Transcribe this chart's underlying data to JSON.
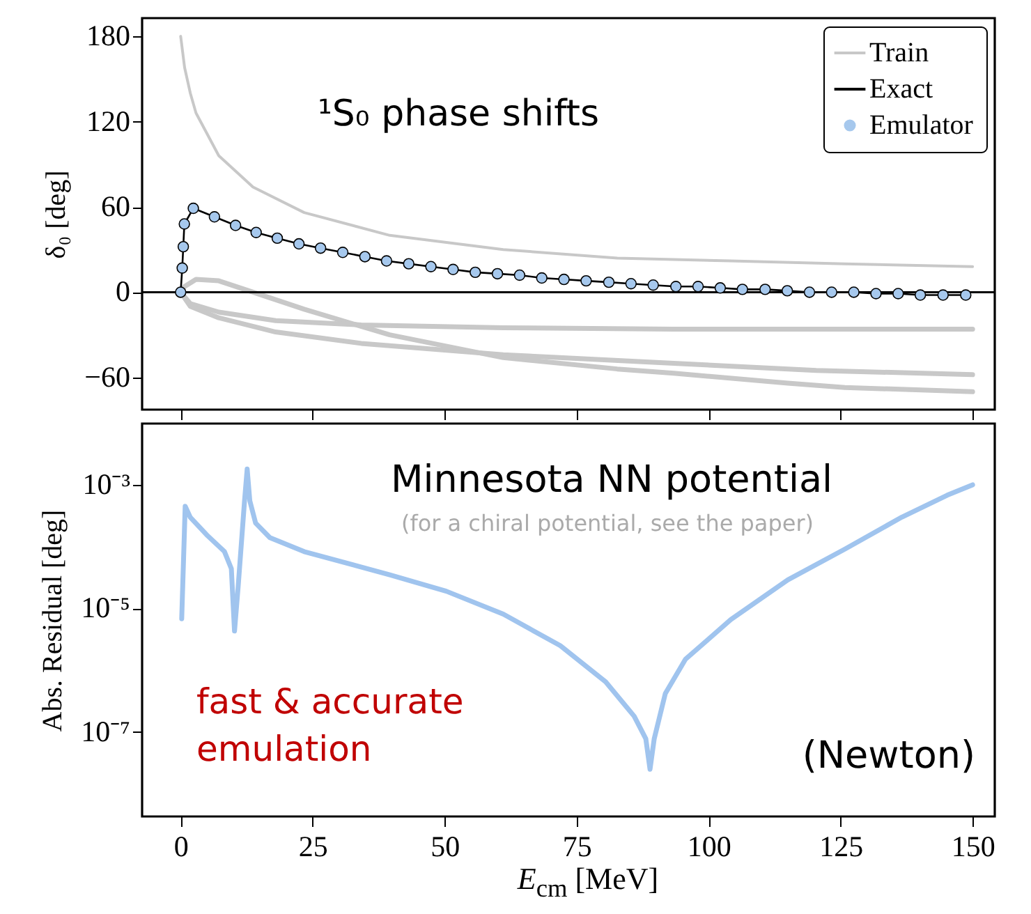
{
  "chart_data": [
    {
      "type": "line",
      "ylabel": "δ₀ [deg]",
      "xlim": [
        -7.3,
        154.2
      ],
      "ylim": [
        -82.6,
        192.8
      ],
      "xticks": [
        0,
        25,
        50,
        75,
        100,
        125,
        150
      ],
      "yticks": [
        {
          "value": -60,
          "label": "−60"
        },
        0,
        60,
        120,
        180
      ],
      "tick_labels": "y",
      "grid": false,
      "legend": "top right",
      "annotations": [
        "¹S₀ phase shifts"
      ],
      "ref_lines": [
        {
          "axis": "y",
          "value": 0,
          "color": "#000000"
        }
      ],
      "series": [
        {
          "name": "Train",
          "color": "#c8c8c8",
          "x": [
            0,
            0.75,
            1.83,
            2.91,
            7.22,
            13.7,
            23.4,
            39.6,
            61.1,
            82.7,
            104.2,
            125.8,
            150
          ],
          "values": [
            180,
            158,
            140,
            126,
            96,
            74,
            56,
            40,
            30,
            24,
            22,
            20,
            18
          ]
        },
        {
          "color": "#c8c8c8",
          "x": [
            0,
            0.75,
            2.91,
            7.22,
            13.7,
            23.4,
            39.6,
            61.1,
            82.7,
            93.4,
            115.0,
            125.8,
            150
          ],
          "values": [
            0,
            4,
            9,
            8,
            0,
            -12,
            -30,
            -46,
            -54,
            -57,
            -64,
            -67,
            -70
          ]
        },
        {
          "color": "#c8c8c8",
          "x": [
            0,
            1.83,
            7.22,
            18.0,
            34.2,
            61.1,
            93.4,
            150
          ],
          "values": [
            0,
            -8,
            -14,
            -20,
            -23,
            -25,
            -26,
            -26
          ]
        },
        {
          "color": "#c8c8c8",
          "x": [
            0,
            1.83,
            7.22,
            18.0,
            34.2,
            61.1,
            93.4,
            120.4,
            150
          ],
          "values": [
            0,
            -10,
            -18,
            -28,
            -36,
            -44,
            -50,
            -55,
            -58
          ]
        },
        {
          "name": "Exact",
          "color": "#000000",
          "x": [
            0,
            0.3,
            0.5,
            0.7,
            2.4,
            6.4,
            10.4,
            14.3,
            18.3,
            22.4,
            26.5,
            30.7,
            34.9,
            39.0,
            43.2,
            47.4,
            51.6,
            55.8,
            60.0,
            64.2,
            68.4,
            72.6,
            76.8,
            81.1,
            85.3,
            89.5,
            93.8,
            98.0,
            102.2,
            106.4,
            110.7,
            114.9,
            119.1,
            123.3,
            127.5,
            131.7,
            135.9,
            140.1,
            144.4,
            148.7
          ],
          "values": [
            0,
            17,
            32,
            48,
            59,
            53,
            47,
            42,
            38,
            34,
            31,
            28,
            25,
            22,
            20,
            18,
            16,
            14,
            13,
            12,
            10,
            9,
            8,
            7,
            6,
            5,
            4,
            4,
            3,
            2,
            2,
            1,
            0,
            0,
            0,
            -1,
            -1,
            -2,
            -2,
            -2
          ]
        },
        {
          "name": "Emulator",
          "type": "scatter",
          "marker": "circle",
          "color": "#a6c8ed",
          "x": [
            0,
            0.3,
            0.5,
            0.7,
            2.4,
            6.4,
            10.4,
            14.3,
            18.3,
            22.4,
            26.5,
            30.7,
            34.9,
            39.0,
            43.2,
            47.4,
            51.6,
            55.8,
            60.0,
            64.2,
            68.4,
            72.6,
            76.8,
            81.1,
            85.3,
            89.5,
            93.8,
            98.0,
            102.2,
            106.4,
            110.7,
            114.9,
            119.1,
            123.3,
            127.5,
            131.7,
            135.9,
            140.1,
            144.4,
            148.7
          ],
          "values": [
            0,
            17,
            32,
            48,
            59,
            53,
            47,
            42,
            38,
            34,
            31,
            28,
            25,
            22,
            20,
            18,
            16,
            14,
            13,
            12,
            10,
            9,
            8,
            7,
            6,
            5,
            4,
            4,
            3,
            2,
            2,
            1,
            0,
            0,
            0,
            -1,
            -1,
            -2,
            -2,
            -2
          ]
        }
      ]
    },
    {
      "type": "line",
      "xlabel": "E$_{cm}$ [MeV]",
      "ylabel": "Abs. Residual [deg]",
      "log": "y",
      "xlim": [
        -7.3,
        154.2
      ],
      "ylim": [
        4.3e-09,
        0.0098
      ],
      "xticks": [
        0,
        25,
        50,
        75,
        100,
        125,
        150
      ],
      "yticks": [
        {
          "value": 1e-07,
          "label": "10⁻⁷"
        },
        {
          "value": 1e-05,
          "label": "10⁻⁵"
        },
        {
          "value": 0.001,
          "label": "10⁻³"
        }
      ],
      "grid": false,
      "legend": false,
      "annotations": [
        "Minnesota NN potential",
        "(for a chiral potential, see the paper)",
        "fast & accurate\nemulation",
        "(Newton)"
      ],
      "series": [
        {
          "color": "#a0c4ee",
          "x": [
            0.2,
            0.86,
            1.8,
            5.1,
            8.3,
            9.6,
            10.2,
            10.9,
            12.1,
            12.6,
            13.1,
            14.2,
            16.9,
            23.4,
            39.6,
            50.3,
            61.1,
            71.9,
            80.5,
            85.9,
            88.1,
            88.9,
            89.7,
            91.8,
            95.6,
            104.2,
            115.0,
            125.8,
            136.6,
            145.2,
            150
          ],
          "values": [
            6.8e-06,
            0.00045,
            0.0003,
            0.00015,
            8.3e-05,
            4.4e-05,
            4.3e-06,
            2.3e-05,
            0.00055,
            0.0018,
            0.00055,
            0.00024,
            0.00014,
            8.3e-05,
            3.5e-05,
            1.9e-05,
            8.1e-06,
            2.5e-06,
            6.5e-07,
            1.8e-07,
            7.8e-08,
            2.5e-08,
            7.8e-08,
            4.2e-07,
            1.5e-06,
            6.6e-06,
            2.9e-05,
            9.1e-05,
            0.0003,
            0.00068,
            0.001
          ]
        }
      ]
    }
  ]
}
